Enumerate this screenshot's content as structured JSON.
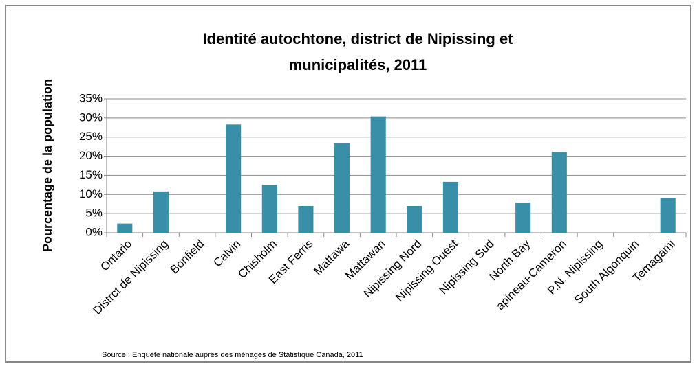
{
  "chart_data": {
    "type": "bar",
    "title": "Identité autochtone, district de Nipissing et municipalités, 2011",
    "y_axis_label": "Pourcentage de la population",
    "source": "Source : Enquête nationale auprès des ménages de Statistique Canada, 2011",
    "categories": [
      "Ontario",
      "Distrct de Nipissing",
      "Bonfield",
      "Calvin",
      "Chisholm",
      "East Ferris",
      "Mattawa",
      "Mattawan",
      "Nipissing Nord",
      "Nipissing Ouest",
      "Nipissing Sud",
      "North Bay",
      "apineau-Cameron",
      "P.N. Nipissing",
      "South Algonquin",
      "Temagami"
    ],
    "values": [
      2.4,
      10.8,
      0,
      28.3,
      12.5,
      7.0,
      23.4,
      30.4,
      7.0,
      13.3,
      0,
      7.9,
      21.1,
      0,
      0,
      9.1
    ],
    "color": "#3a8fa8",
    "ylim": [
      0,
      35
    ],
    "yticks": [
      {
        "value": 0,
        "label": "0%"
      },
      {
        "value": 5,
        "label": "5%"
      },
      {
        "value": 10,
        "label": "10%"
      },
      {
        "value": 15,
        "label": "15%"
      },
      {
        "value": 20,
        "label": "20%"
      },
      {
        "value": 25,
        "label": "25%"
      },
      {
        "value": 30,
        "label": "30%"
      },
      {
        "value": 35,
        "label": "35%"
      }
    ],
    "grid": true
  }
}
